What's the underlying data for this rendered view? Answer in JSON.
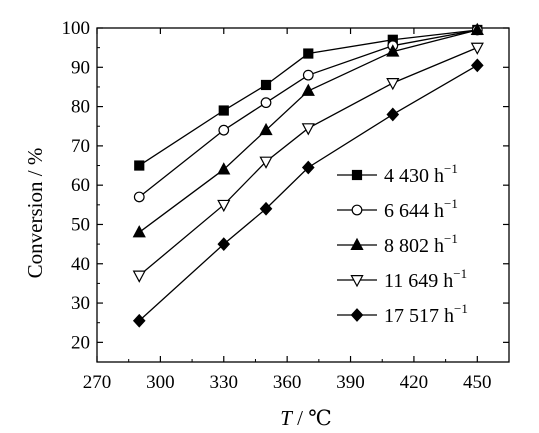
{
  "chart_data": {
    "type": "line",
    "xlabel": {
      "var": "T",
      "unit": " / ℃"
    },
    "ylabel": "Conversion / %",
    "xlim": [
      270,
      465
    ],
    "ylim": [
      15,
      100
    ],
    "xticks": [
      270,
      300,
      330,
      360,
      390,
      420,
      450
    ],
    "yticks": [
      20,
      30,
      40,
      50,
      60,
      70,
      80,
      90,
      100
    ],
    "grid": false,
    "legend_position": "right",
    "series": [
      {
        "name": "4 430 h",
        "sup": "−1",
        "marker": "square-filled",
        "x": [
          290,
          330,
          350,
          370,
          410,
          450
        ],
        "y": [
          65,
          79,
          85.5,
          93.5,
          97,
          99.5
        ]
      },
      {
        "name": "6 644 h",
        "sup": "−1",
        "marker": "circle-open",
        "x": [
          290,
          330,
          350,
          370,
          410,
          450
        ],
        "y": [
          57,
          74,
          81,
          88,
          95.5,
          99.5
        ]
      },
      {
        "name": "8 802 h",
        "sup": "−1",
        "marker": "triangle-up-filled",
        "x": [
          290,
          330,
          350,
          370,
          410,
          450
        ],
        "y": [
          48,
          64,
          74,
          84,
          94,
          99.5
        ]
      },
      {
        "name": "11 649 h",
        "sup": "−1",
        "marker": "triangle-down-open",
        "x": [
          290,
          330,
          350,
          370,
          410,
          450
        ],
        "y": [
          37,
          55,
          66,
          74.5,
          86,
          95
        ]
      },
      {
        "name": "17 517 h",
        "sup": "−1",
        "marker": "diamond-filled",
        "x": [
          290,
          330,
          350,
          370,
          410,
          450
        ],
        "y": [
          25.5,
          45,
          54,
          64.5,
          78,
          90.5
        ]
      }
    ]
  }
}
